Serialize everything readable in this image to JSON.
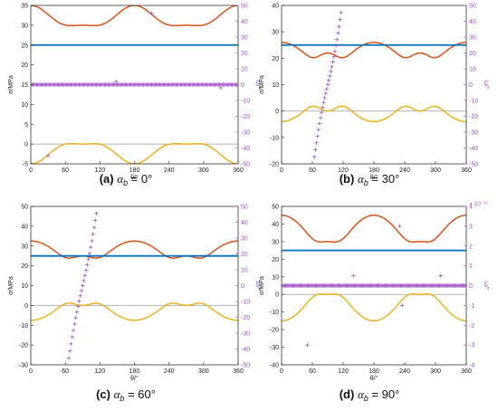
{
  "colors": {
    "sigma1": "#d95319",
    "sigma2": "#0072bd",
    "sigma3": "#edb120",
    "omega": "#a04fc8",
    "zero": "#b3b3b3",
    "axis": "#333333"
  },
  "chart_data": [
    {
      "id": "a",
      "type": "line",
      "caption_label": "(a)",
      "caption_value": "= 0°",
      "xlabel": "θ/°",
      "ylabel": "σ/MPa",
      "y2label": "ω/°",
      "xlim": [
        0,
        360
      ],
      "ylim": [
        -5,
        35
      ],
      "y2lim": [
        -50,
        50
      ],
      "xticks": [
        0,
        60,
        120,
        180,
        240,
        300,
        360
      ],
      "yticks": [
        -5,
        0,
        5,
        10,
        15,
        20,
        25,
        30,
        35
      ],
      "y2ticks": [
        -50,
        -40,
        -30,
        -20,
        -10,
        0,
        10,
        20,
        30,
        40,
        50
      ],
      "params": {
        "b": 25,
        "A": 15,
        "C": 20,
        "P": 2,
        "low": 5,
        "high": 35,
        "omegaMode": "flat",
        "omegaFlat": 0
      },
      "omega_extra": [
        [
          30,
          -45
        ],
        [
          148,
          2
        ],
        [
          210,
          45
        ],
        [
          330,
          -2
        ]
      ]
    },
    {
      "id": "b",
      "type": "line",
      "caption_label": "(b)",
      "caption_value": "= 30°",
      "xlabel": "θ/°",
      "ylabel": "σ/MPa",
      "y2label": "ω/°",
      "xlim": [
        0,
        360
      ],
      "ylim": [
        -20,
        40
      ],
      "y2lim": [
        -50,
        50
      ],
      "xticks": [
        0,
        60,
        120,
        180,
        240,
        300,
        360
      ],
      "yticks": [
        -20,
        -10,
        0,
        10,
        20,
        30,
        40
      ],
      "y2ticks": [
        -50,
        -40,
        -30,
        -20,
        -10,
        0,
        10,
        20,
        30,
        40,
        50
      ],
      "params": {
        "b": 25,
        "A": 11,
        "C": 15,
        "P": 5,
        "low": 11,
        "high": 38,
        "omegaMode": "atan",
        "omegaLim": 50
      }
    },
    {
      "id": "c",
      "type": "line",
      "caption_label": "(c)",
      "caption_value": "= 60°",
      "xlabel": "θ/°",
      "ylabel": "σ/MPa",
      "y2label": "ω/°",
      "xlim": [
        0,
        360
      ],
      "ylim": [
        -30,
        50
      ],
      "y2lim": [
        -50,
        50
      ],
      "xticks": [
        0,
        60,
        120,
        180,
        240,
        300,
        360
      ],
      "yticks": [
        -30,
        -20,
        -10,
        0,
        10,
        20,
        30,
        40,
        50
      ],
      "y2ticks": [
        -50,
        -40,
        -30,
        -20,
        -10,
        0,
        10,
        20,
        30,
        40,
        50
      ],
      "params": {
        "b": 25,
        "A": 12.5,
        "C": 20,
        "P": 5,
        "low": 14.5,
        "high": 42.5,
        "omegaMode": "atan",
        "omegaLim": 50
      }
    },
    {
      "id": "d",
      "type": "line",
      "caption_label": "(d)",
      "caption_value": "= 90°",
      "xlabel": "θ/°",
      "ylabel": "σ/MPa",
      "y2label": "ω/°",
      "y2multiplier": "× 10⁻¹³",
      "xlim": [
        0,
        360
      ],
      "ylim": [
        -40,
        50
      ],
      "y2lim": [
        -4,
        4
      ],
      "xticks": [
        0,
        60,
        120,
        180,
        240,
        300,
        360
      ],
      "yticks": [
        -40,
        -30,
        -20,
        -10,
        0,
        10,
        20,
        30,
        40,
        50
      ],
      "y2ticks": [
        -4,
        -3,
        -2,
        -1,
        0,
        1,
        2,
        3,
        4
      ],
      "params": {
        "b": 25,
        "A": 15,
        "C": 30,
        "P": 5,
        "low": 15,
        "high": 45,
        "omegaMode": "flat",
        "omegaFlat": 0
      },
      "omega_extra": [
        [
          50,
          -3
        ],
        [
          140,
          0.5
        ],
        [
          230,
          3
        ],
        [
          235,
          -1
        ],
        [
          310,
          0.5
        ]
      ]
    }
  ]
}
